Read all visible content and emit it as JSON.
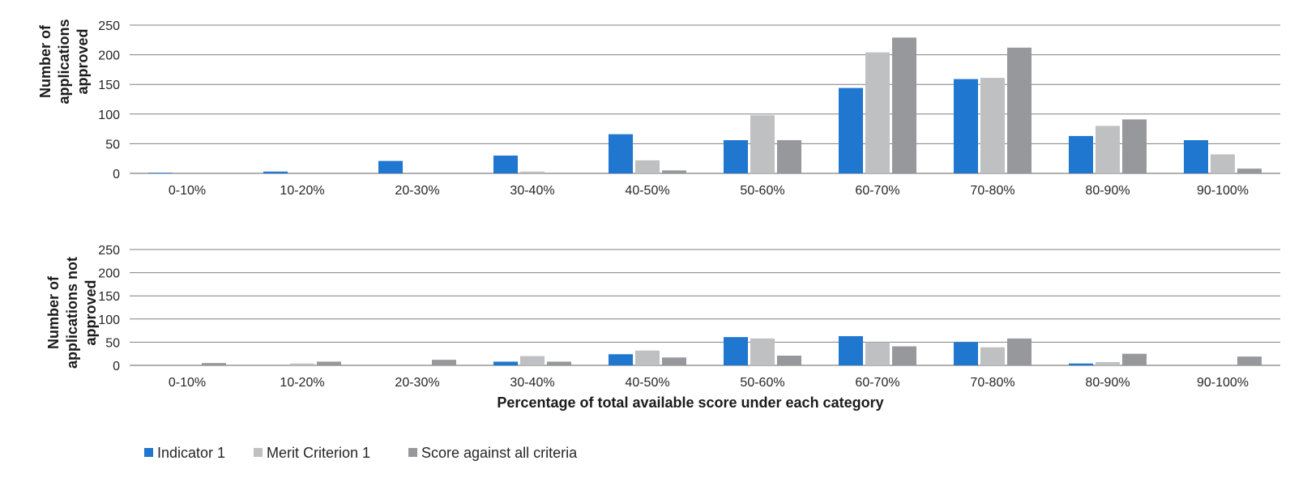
{
  "chart_data": [
    {
      "type": "bar",
      "ylabel": [
        "Number of",
        "applications",
        "approved"
      ],
      "xlabel": "",
      "ylim": [
        0,
        250
      ],
      "yticks": [
        "0",
        "50",
        "100",
        "150",
        "200",
        "250"
      ],
      "grid": true,
      "categories": [
        "0-10%",
        "10-20%",
        "20-30%",
        "30-40%",
        "40-50%",
        "50-60%",
        "60-70%",
        "70-80%",
        "80-90%",
        "90-100%"
      ],
      "series": [
        {
          "name": "Indicator 1",
          "color": "#1f77d0",
          "values": [
            1,
            3,
            21,
            30,
            66,
            56,
            144,
            159,
            63,
            56
          ]
        },
        {
          "name": "Merit Criterion 1",
          "color": "#bfc0c2",
          "values": [
            0,
            0,
            0,
            3,
            22,
            98,
            204,
            161,
            80,
            32
          ]
        },
        {
          "name": "Score against all criteria",
          "color": "#97989b",
          "values": [
            0,
            0,
            0,
            0,
            5,
            56,
            229,
            212,
            91,
            8
          ]
        }
      ]
    },
    {
      "type": "bar",
      "ylabel": [
        "Number of",
        "applications not",
        "approved"
      ],
      "xlabel": "Percentage of total available score under each category",
      "ylim": [
        0,
        250
      ],
      "yticks": [
        "0",
        "50",
        "100",
        "150",
        "200",
        "250"
      ],
      "grid": true,
      "categories": [
        "0-10%",
        "10-20%",
        "20-30%",
        "30-40%",
        "40-50%",
        "50-60%",
        "60-70%",
        "70-80%",
        "80-90%",
        "90-100%"
      ],
      "series": [
        {
          "name": "Indicator 1",
          "color": "#1f77d0",
          "values": [
            0,
            0,
            0,
            8,
            24,
            61,
            63,
            50,
            4,
            0
          ]
        },
        {
          "name": "Merit Criterion 1",
          "color": "#bfc0c2",
          "values": [
            0,
            4,
            0,
            20,
            32,
            58,
            50,
            39,
            7,
            0
          ]
        },
        {
          "name": "Score against all criteria",
          "color": "#97989b",
          "values": [
            5,
            8,
            12,
            8,
            17,
            21,
            41,
            58,
            25,
            19
          ]
        }
      ]
    }
  ],
  "legend": {
    "placement": "bottom-left",
    "items": [
      "Indicator 1",
      "Merit Criterion 1",
      "Score against all criteria"
    ]
  }
}
